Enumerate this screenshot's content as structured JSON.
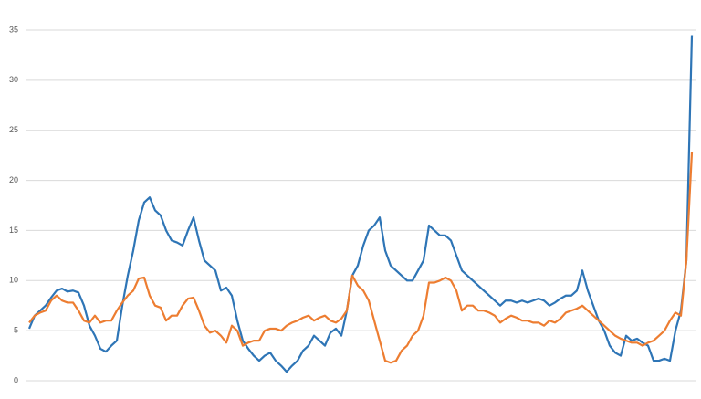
{
  "chart_data": {
    "type": "line",
    "ylim": [
      0,
      35
    ],
    "yticks": [
      0,
      5,
      10,
      15,
      20,
      25,
      30,
      35
    ],
    "grid": true,
    "series": [
      {
        "color": "#2e75b6",
        "values": [
          5.2,
          6.5,
          7.0,
          7.5,
          8.3,
          9.0,
          9.2,
          8.9,
          9.0,
          8.8,
          7.5,
          5.5,
          4.5,
          3.2,
          2.9,
          3.5,
          4.0,
          7.5,
          10.5,
          13.0,
          16.0,
          17.8,
          18.3,
          17.0,
          16.5,
          15.0,
          14.0,
          13.8,
          13.5,
          15.0,
          16.3,
          14.0,
          12.0,
          11.5,
          11.0,
          9.0,
          9.3,
          8.5,
          6.0,
          4.0,
          3.2,
          2.5,
          2.0,
          2.5,
          2.8,
          2.0,
          1.5,
          0.9,
          1.5,
          2.0,
          3.0,
          3.5,
          4.5,
          4.0,
          3.5,
          4.8,
          5.2,
          4.5,
          7.0,
          10.5,
          11.5,
          13.5,
          15.0,
          15.5,
          16.3,
          13.0,
          11.5,
          11.0,
          10.5,
          10.0,
          10.0,
          11.0,
          12.0,
          15.5,
          15.0,
          14.5,
          14.5,
          14.0,
          12.5,
          11.0,
          10.5,
          10.0,
          9.5,
          9.0,
          8.5,
          8.0,
          7.5,
          8.0,
          8.0,
          7.8,
          8.0,
          7.8,
          8.0,
          8.2,
          8.0,
          7.5,
          7.8,
          8.2,
          8.5,
          8.5,
          9.0,
          11.0,
          9.0,
          7.5,
          6.0,
          5.0,
          3.5,
          2.8,
          2.5,
          4.5,
          4.0,
          4.2,
          3.8,
          3.5,
          2.0,
          2.0,
          2.2,
          2.0,
          5.0,
          7.0,
          12.0,
          34.5
        ]
      },
      {
        "color": "#ed7d31",
        "values": [
          5.8,
          6.5,
          6.8,
          7.0,
          8.0,
          8.5,
          8.0,
          7.8,
          7.8,
          7.0,
          6.0,
          5.8,
          6.5,
          5.8,
          6.0,
          6.0,
          7.0,
          7.8,
          8.5,
          9.0,
          10.2,
          10.3,
          8.5,
          7.5,
          7.3,
          6.0,
          6.5,
          6.5,
          7.5,
          8.2,
          8.3,
          7.0,
          5.5,
          4.8,
          5.0,
          4.5,
          3.8,
          5.5,
          5.0,
          3.5,
          3.8,
          4.0,
          4.0,
          5.0,
          5.2,
          5.2,
          5.0,
          5.5,
          5.8,
          6.0,
          6.3,
          6.5,
          6.0,
          6.3,
          6.5,
          6.0,
          5.8,
          6.2,
          7.0,
          10.5,
          9.5,
          9.0,
          8.0,
          6.0,
          4.0,
          2.0,
          1.8,
          2.0,
          3.0,
          3.5,
          4.5,
          5.0,
          6.5,
          9.8,
          9.8,
          10.0,
          10.3,
          10.0,
          9.0,
          7.0,
          7.5,
          7.5,
          7.0,
          7.0,
          6.8,
          6.5,
          5.8,
          6.2,
          6.5,
          6.3,
          6.0,
          6.0,
          5.8,
          5.8,
          5.5,
          6.0,
          5.8,
          6.2,
          6.8,
          7.0,
          7.2,
          7.5,
          7.0,
          6.5,
          6.0,
          5.5,
          5.0,
          4.5,
          4.2,
          4.0,
          3.8,
          3.8,
          3.5,
          3.8,
          4.0,
          4.5,
          5.0,
          6.0,
          6.8,
          6.5,
          12.0,
          22.8
        ]
      }
    ]
  }
}
